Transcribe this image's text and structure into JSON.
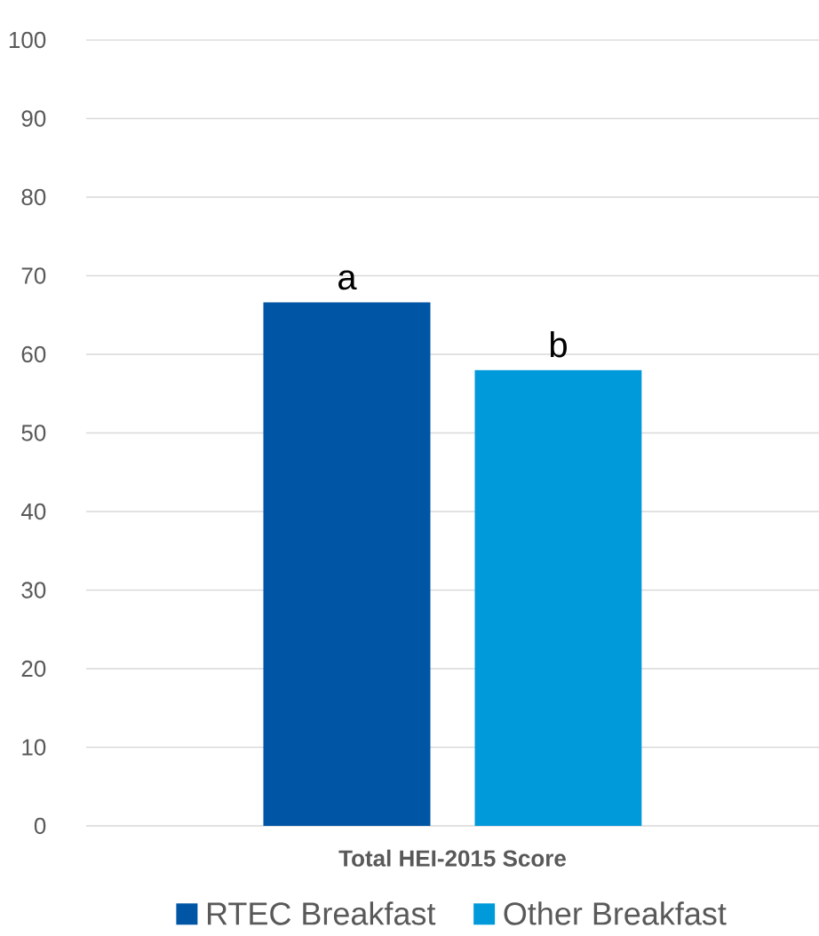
{
  "chart_data": {
    "type": "bar",
    "categories": [
      "Total HEI-2015 Score"
    ],
    "series": [
      {
        "name": "RTEC Breakfast",
        "color": "#0055a5",
        "values": [
          66.6
        ]
      },
      {
        "name": "Other Breakfast",
        "color": "#009ada",
        "values": [
          58.0
        ]
      }
    ],
    "ylim": [
      0,
      100
    ],
    "yticks": [
      0,
      10,
      20,
      30,
      40,
      50,
      60,
      70,
      80,
      90,
      100
    ],
    "grid": "y",
    "legend": "bottom",
    "annotations": [
      "a",
      "b"
    ]
  }
}
